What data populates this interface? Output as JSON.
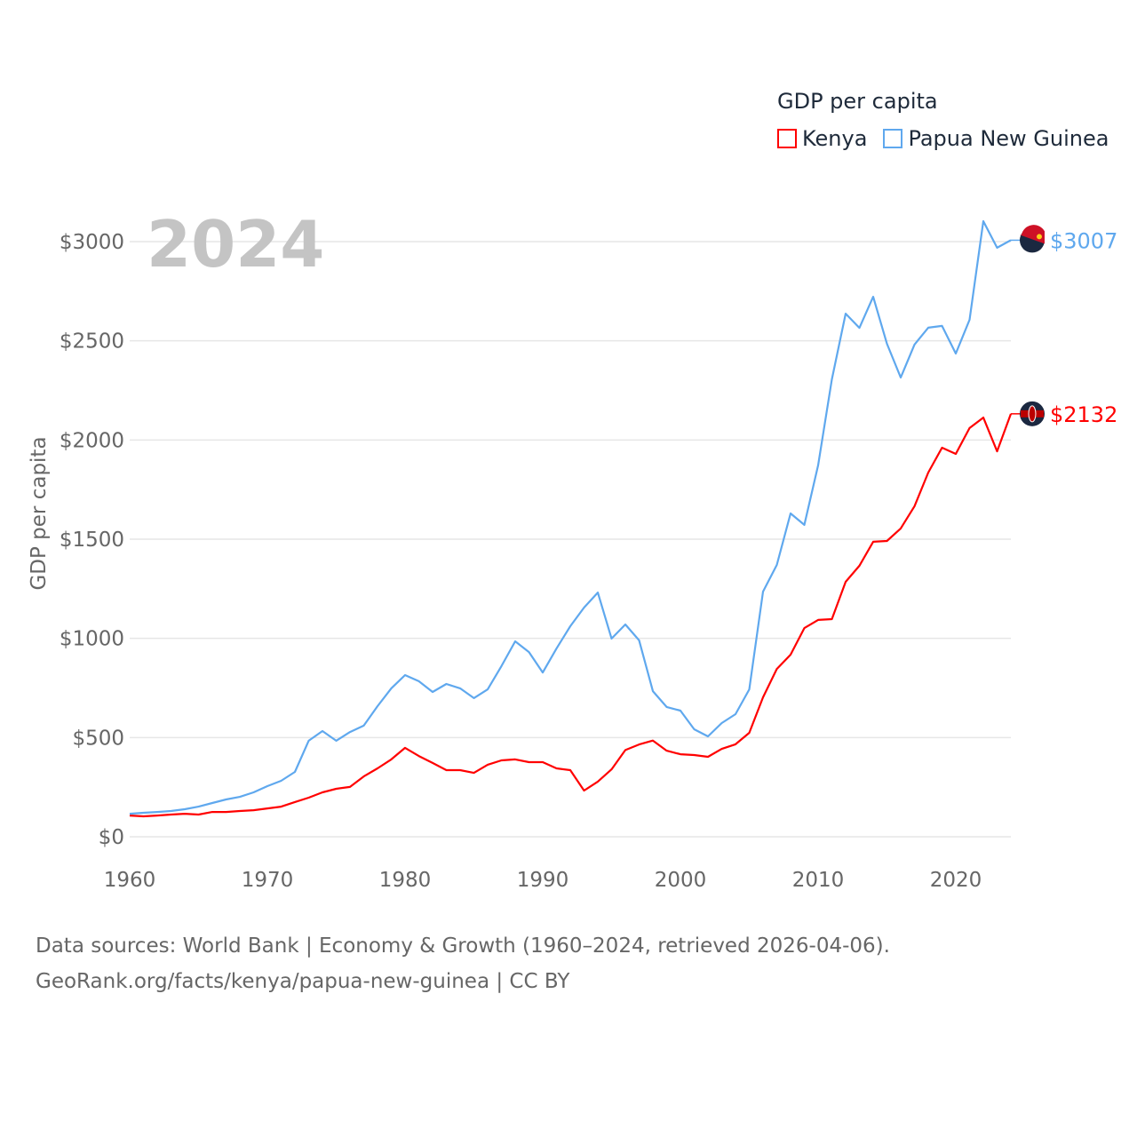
{
  "chart_data": {
    "type": "line",
    "title": "GDP per capita",
    "year_label": "2024",
    "xlabel": "",
    "ylabel": "GDP per capita",
    "xlim": [
      1960,
      2024
    ],
    "ylim": [
      0,
      3000
    ],
    "x_ticks": [
      1960,
      1970,
      1980,
      1990,
      2000,
      2010,
      2020
    ],
    "y_ticks": [
      0,
      500,
      1000,
      1500,
      2000,
      2500,
      3000
    ],
    "y_tick_labels": [
      "$0",
      "$500",
      "$1000",
      "$1500",
      "$2000",
      "$2500",
      "$3000"
    ],
    "grid": true,
    "legend_placement": "top-right",
    "x": [
      1960,
      1961,
      1962,
      1963,
      1964,
      1965,
      1966,
      1967,
      1968,
      1969,
      1970,
      1971,
      1972,
      1973,
      1974,
      1975,
      1976,
      1977,
      1978,
      1979,
      1980,
      1981,
      1982,
      1983,
      1984,
      1985,
      1986,
      1987,
      1988,
      1989,
      1990,
      1991,
      1992,
      1993,
      1994,
      1995,
      1996,
      1997,
      1998,
      1999,
      2000,
      2001,
      2002,
      2003,
      2004,
      2005,
      2006,
      2007,
      2008,
      2009,
      2010,
      2011,
      2012,
      2013,
      2014,
      2015,
      2016,
      2017,
      2018,
      2019,
      2020,
      2021,
      2022,
      2023,
      2024
    ],
    "series": [
      {
        "name": "Kenya",
        "color": "#ff0000",
        "end_label": "$2132",
        "values": [
          107,
          103,
          107,
          112,
          116,
          112,
          125,
          125,
          130,
          134,
          143,
          152,
          175,
          197,
          224,
          242,
          251,
          304,
          345,
          390,
          448,
          407,
          372,
          336,
          336,
          322,
          363,
          385,
          390,
          376,
          376,
          345,
          336,
          233,
          278,
          340,
          437,
          465,
          485,
          434,
          416,
          412,
          403,
          443,
          466,
          524,
          703,
          846,
          918,
          1052,
          1093,
          1097,
          1285,
          1366,
          1487,
          1491,
          1554,
          1666,
          1836,
          1961,
          1930,
          2060,
          2113,
          1943,
          2132
        ]
      },
      {
        "name": "Papua New Guinea",
        "color": "#5fa8ee",
        "end_label": "$3007",
        "values": [
          116,
          121,
          125,
          130,
          139,
          152,
          170,
          188,
          201,
          224,
          255,
          282,
          327,
          484,
          533,
          484,
          528,
          560,
          658,
          748,
          815,
          784,
          730,
          770,
          748,
          699,
          743,
          860,
          985,
          931,
          828,
          949,
          1061,
          1155,
          1231,
          999,
          1070,
          990,
          734,
          654,
          636,
          542,
          506,
          573,
          618,
          743,
          1236,
          1370,
          1630,
          1572,
          1872,
          2306,
          2637,
          2565,
          2722,
          2485,
          2315,
          2481,
          2566,
          2575,
          2436,
          2606,
          3103,
          2969,
          3007
        ]
      }
    ]
  },
  "source": {
    "line1": "Data sources: World Bank | Economy & Growth (1960–2024, retrieved 2026-04-06).",
    "line2": "GeoRank.org/facts/kenya/papua-new-guinea | CC BY"
  }
}
